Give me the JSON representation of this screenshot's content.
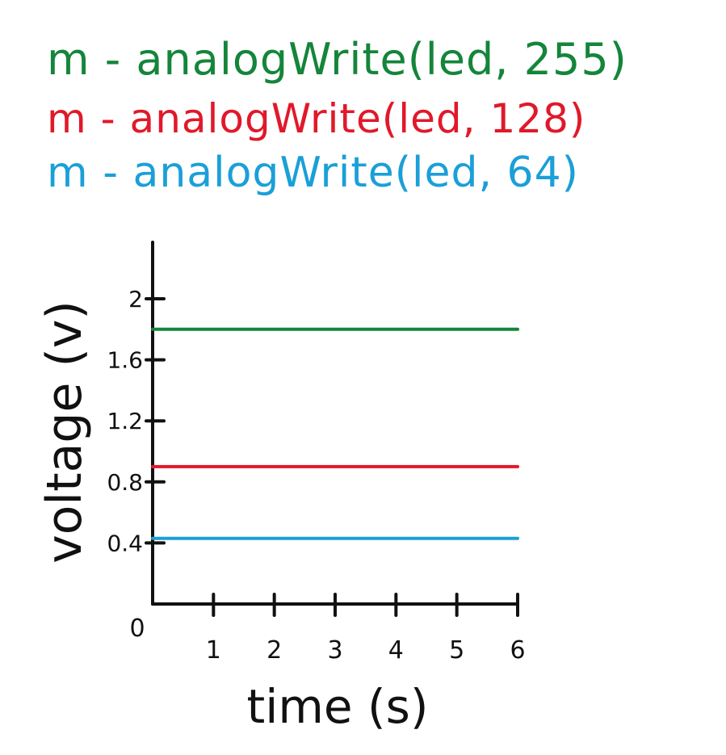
{
  "legend": [
    {
      "swatch": "m",
      "text": "- analogWrite(led, 255)",
      "color": "#14853a"
    },
    {
      "swatch": "m",
      "text": "- analogWrite(led, 128)",
      "color": "#e0192a"
    },
    {
      "swatch": "m",
      "text": "- analogWrite(led, 64)",
      "color": "#1b9fd8"
    }
  ],
  "chart_data": {
    "type": "line",
    "title": "",
    "xlabel": "time (s)",
    "ylabel": "voltage (v)",
    "x": [
      0,
      6
    ],
    "xticks": [
      1,
      2,
      3,
      4,
      5,
      6
    ],
    "yticks": [
      "0.4",
      "0.8",
      "1.2",
      "1.6",
      "2"
    ],
    "origin_label": "0",
    "xlim": [
      0,
      6
    ],
    "ylim": [
      0,
      2.4
    ],
    "grid": false,
    "legend_position": "top",
    "series": [
      {
        "name": "analogWrite(led, 255)",
        "color": "#14853a",
        "values": [
          1.8,
          1.8
        ]
      },
      {
        "name": "analogWrite(led, 128)",
        "color": "#e0192a",
        "values": [
          0.9,
          0.9
        ]
      },
      {
        "name": "analogWrite(led, 64)",
        "color": "#1b9fd8",
        "values": [
          0.43,
          0.43
        ]
      }
    ]
  }
}
